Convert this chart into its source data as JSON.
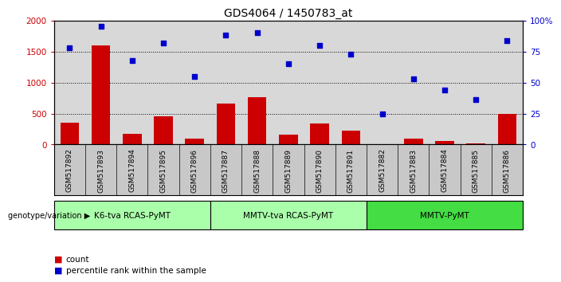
{
  "title": "GDS4064 / 1450783_at",
  "samples": [
    "GSM517892",
    "GSM517893",
    "GSM517894",
    "GSM517895",
    "GSM517896",
    "GSM517887",
    "GSM517888",
    "GSM517889",
    "GSM517890",
    "GSM517891",
    "GSM517882",
    "GSM517883",
    "GSM517884",
    "GSM517885",
    "GSM517886"
  ],
  "counts": [
    350,
    1600,
    175,
    450,
    95,
    660,
    770,
    155,
    335,
    230,
    8,
    90,
    55,
    25,
    500
  ],
  "percentiles": [
    78,
    95,
    68,
    82,
    55,
    88,
    90,
    65,
    80,
    73,
    25,
    53,
    44,
    36,
    84
  ],
  "groups": [
    {
      "label": "K6-tva RCAS-PyMT",
      "start": 0,
      "end": 5,
      "color": "#aaffaa"
    },
    {
      "label": "MMTV-tva RCAS-PyMT",
      "start": 5,
      "end": 10,
      "color": "#aaffaa"
    },
    {
      "label": "MMTV-PyMT",
      "start": 10,
      "end": 15,
      "color": "#44dd44"
    }
  ],
  "bar_color": "#cc0000",
  "dot_color": "#0000cc",
  "ylim_left": [
    0,
    2000
  ],
  "ylim_right": [
    0,
    100
  ],
  "yticks_left": [
    0,
    500,
    1000,
    1500,
    2000
  ],
  "yticks_right": [
    0,
    25,
    50,
    75,
    100
  ],
  "yticklabels_left": [
    "0",
    "500",
    "1000",
    "1500",
    "2000"
  ],
  "yticklabels_right": [
    "0",
    "25",
    "50",
    "75",
    "100%"
  ],
  "plot_bg_color": "#d8d8d8",
  "label_bg_color": "#c8c8c8",
  "legend_count_label": "count",
  "legend_pct_label": "percentile rank within the sample",
  "genotype_label": "genotype/variation"
}
